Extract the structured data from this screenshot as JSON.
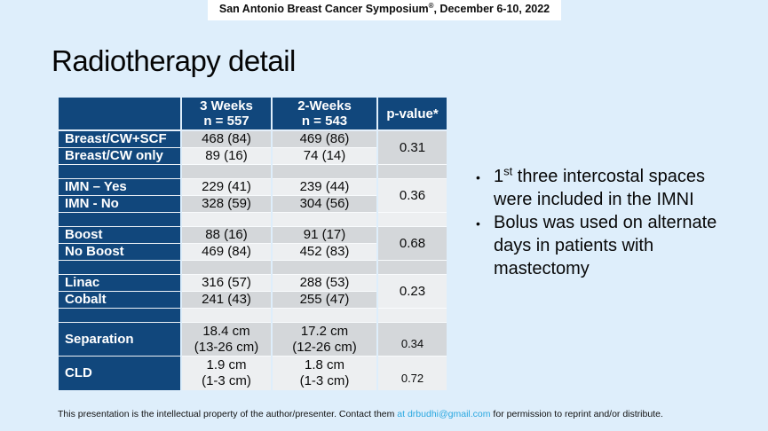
{
  "banner": {
    "pre": "San Antonio Breast Cancer Symposium",
    "sup": "®",
    "post": ", December 6-10, 2022"
  },
  "title": "Radiotherapy detail",
  "table": {
    "header": {
      "col1": "",
      "col2": "3 Weeks\nn = 557",
      "col3": "2-Weeks\nn = 543",
      "col4": "p-value*"
    },
    "groups": [
      {
        "p": "0.31",
        "rows": [
          {
            "label": "Breast/CW+SCF",
            "c1": "468 (84)",
            "c2": "469 (86)"
          },
          {
            "label": "Breast/CW only",
            "c1": "89 (16)",
            "c2": "74 (14)"
          }
        ]
      },
      {
        "p": "0.36",
        "rows": [
          {
            "label": "IMN – Yes",
            "c1": "229 (41)",
            "c2": "239 (44)"
          },
          {
            "label": "IMN - No",
            "c1": "328 (59)",
            "c2": "304 (56)"
          }
        ]
      },
      {
        "p": "0.68",
        "rows": [
          {
            "label": "Boost",
            "c1": "88 (16)",
            "c2": "91 (17)"
          },
          {
            "label": "No Boost",
            "c1": "469 (84)",
            "c2": "452 (83)"
          }
        ]
      },
      {
        "p": "0.23",
        "rows": [
          {
            "label": "Linac",
            "c1": "316 (57)",
            "c2": "288 (53)"
          },
          {
            "label": "Cobalt",
            "c1": "241 (43)",
            "c2": "255 (47)"
          }
        ]
      }
    ],
    "measure_rows": [
      {
        "label": "Separation",
        "c1": "18.4 cm\n(13-26 cm)",
        "c2": "17.2 cm\n(12-26 cm)",
        "p": "0.34"
      },
      {
        "label": "CLD",
        "c1": "1.9 cm\n(1-3 cm)",
        "c2": "1.8 cm\n(1-3 cm)",
        "p": "0.72"
      }
    ]
  },
  "notes": {
    "bullet1": {
      "pre": "1",
      "sup": "st",
      "post": " three intercostal spaces\nwere included in the IMNI"
    },
    "bullet2": {
      "text": "Bolus was used on alternate\ndays in patients with\nmastectomy"
    }
  },
  "footer": {
    "pre": "This presentation is the intellectual property of the author/presenter. Contact them ",
    "link": "at  drbudhi@gmail.com",
    "post": " for permission to reprint and/or distribute."
  },
  "colors": {
    "page_bg": "#deeefb",
    "navy": "#11477c",
    "row_gray": "#d4d7da",
    "row_light": "#edeff1",
    "link_blue": "#2aa8e0"
  }
}
